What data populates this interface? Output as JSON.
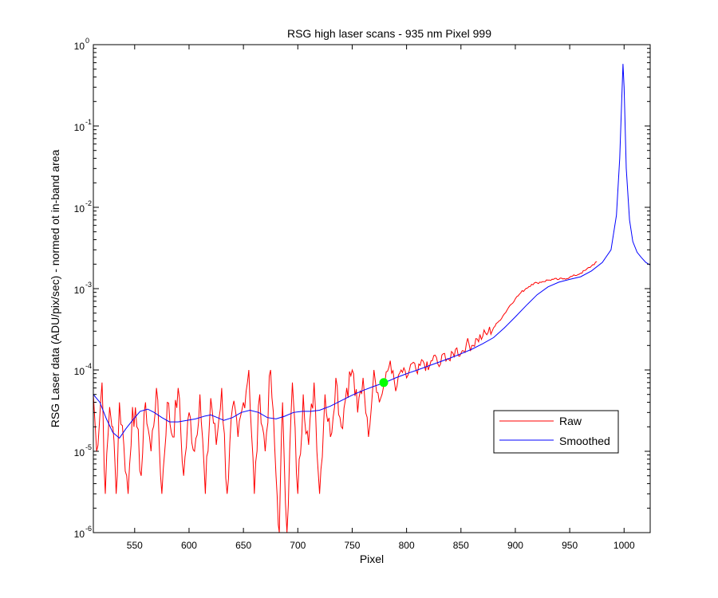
{
  "chart_data": {
    "type": "line",
    "title": "RSG high laser scans  - 935 nm    Pixel 999",
    "xlabel": "Pixel",
    "ylabel": "RSG Laser data (ADU/pix/sec) - normed ot in-band area",
    "xlim": [
      512,
      1024
    ],
    "ylim": [
      1e-06,
      1
    ],
    "yscale": "log",
    "grid": false,
    "legend_position": "lower-right",
    "x_ticks": [
      550,
      600,
      650,
      700,
      750,
      800,
      850,
      900,
      950,
      1000
    ],
    "x_tick_labels": [
      "550",
      "600",
      "650",
      "700",
      "750",
      "800",
      "850",
      "900",
      "950",
      "1000"
    ],
    "y_ticks": [
      {
        "value": 1e-06,
        "base": "10",
        "exp": "-6"
      },
      {
        "value": 1e-05,
        "base": "10",
        "exp": "-5"
      },
      {
        "value": 0.0001,
        "base": "10",
        "exp": "-4"
      },
      {
        "value": 0.001,
        "base": "10",
        "exp": "-3"
      },
      {
        "value": 0.01,
        "base": "10",
        "exp": "-2"
      },
      {
        "value": 0.1,
        "base": "10",
        "exp": "-1"
      },
      {
        "value": 1,
        "base": "10",
        "exp": "0"
      }
    ],
    "series": [
      {
        "name": "Raw",
        "color": "#ff0000",
        "style": "noisy",
        "x": [
          512,
          515,
          520,
          523,
          527,
          530,
          533,
          536,
          540,
          544,
          548,
          552,
          556,
          560,
          565,
          570,
          575,
          580,
          585,
          590,
          595,
          600,
          605,
          610,
          615,
          620,
          625,
          630,
          635,
          640,
          645,
          650,
          655,
          660,
          665,
          670,
          675,
          680,
          683,
          686,
          690,
          695,
          700,
          705,
          710,
          715,
          720,
          725,
          730,
          735,
          740,
          745,
          750,
          755,
          760,
          765,
          770,
          775,
          780,
          785,
          790,
          795,
          800,
          805,
          810,
          815,
          820,
          825,
          830,
          835,
          840,
          845,
          850,
          855,
          860,
          865,
          870,
          875,
          880,
          885,
          890,
          895,
          900,
          905,
          910,
          915,
          920,
          925,
          930,
          935,
          940,
          945,
          950,
          955,
          960,
          965,
          970,
          975
        ],
        "y": [
          5e-05,
          1e-05,
          7e-05,
          3e-06,
          3.5e-05,
          2e-05,
          3e-06,
          4e-05,
          1.2e-05,
          3e-06,
          3.5e-05,
          2e-05,
          5e-06,
          4e-05,
          1e-05,
          6e-05,
          3e-06,
          4e-05,
          1.5e-05,
          6e-05,
          5e-06,
          3e-05,
          1e-05,
          5e-05,
          3e-06,
          4.5e-05,
          1.2e-05,
          6e-05,
          3e-06,
          3.5e-05,
          1.5e-05,
          4e-05,
          0.0001,
          3e-06,
          5e-05,
          1e-05,
          0.0001,
          5e-06,
          1e-06,
          4e-05,
          1e-06,
          7e-05,
          3e-06,
          5e-05,
          1.2e-05,
          7e-05,
          3e-06,
          5e-05,
          1.5e-05,
          8e-05,
          2e-05,
          6e-05,
          0.0001,
          3e-05,
          8e-05,
          1.5e-05,
          0.0001,
          4e-05,
          7e-05,
          0.00013,
          5.5e-05,
          0.0001,
          8e-05,
          0.00012,
          9e-05,
          0.00013,
          0.0001,
          0.00015,
          0.00011,
          0.00016,
          0.00013,
          0.00018,
          0.00016,
          0.00021,
          0.0002,
          0.00024,
          0.00026,
          0.00029,
          0.00033,
          0.0004,
          0.00049,
          0.00062,
          0.00075,
          0.00089,
          0.00101,
          0.00113,
          0.00118,
          0.00122,
          0.00127,
          0.0013,
          0.0013,
          0.00133,
          0.00138,
          0.00145,
          0.00155,
          0.0017,
          0.0019,
          0.00215
        ]
      },
      {
        "name": "Smoothed",
        "color": "#0000ff",
        "style": "smooth",
        "x": [
          512,
          518,
          524,
          530,
          536,
          542,
          548,
          555,
          562,
          568,
          575,
          582,
          590,
          598,
          606,
          614,
          620,
          626,
          632,
          640,
          648,
          656,
          664,
          672,
          680,
          688,
          696,
          704,
          712,
          720,
          730,
          740,
          750,
          760,
          770,
          780,
          790,
          800,
          810,
          820,
          830,
          840,
          850,
          860,
          870,
          880,
          890,
          900,
          910,
          920,
          930,
          940,
          950,
          960,
          970,
          980,
          988,
          993,
          996,
          998,
          999,
          1000,
          1002,
          1005,
          1008,
          1012,
          1016,
          1020,
          1024
        ],
        "y": [
          5e-05,
          4e-05,
          2.5e-05,
          1.7e-05,
          1.45e-05,
          1.9e-05,
          2.4e-05,
          3.1e-05,
          3.3e-05,
          3e-05,
          2.6e-05,
          2.3e-05,
          2.3e-05,
          2.4e-05,
          2.5e-05,
          2.7e-05,
          2.8e-05,
          2.6e-05,
          2.4e-05,
          2.6e-05,
          3e-05,
          3.2e-05,
          3e-05,
          2.6e-05,
          2.5e-05,
          2.7e-05,
          3e-05,
          3.1e-05,
          3.1e-05,
          3.2e-05,
          3.6e-05,
          4.2e-05,
          4.9e-05,
          5.6e-05,
          6.3e-05,
          7e-05,
          8e-05,
          9e-05,
          0.0001,
          0.000112,
          0.000125,
          0.00014,
          0.000158,
          0.00018,
          0.00021,
          0.00025,
          0.00033,
          0.00045,
          0.00062,
          0.00084,
          0.00105,
          0.0012,
          0.0013,
          0.0014,
          0.00165,
          0.0021,
          0.003,
          0.008,
          0.04,
          0.25,
          0.58,
          0.3,
          0.03,
          0.007,
          0.0038,
          0.0028,
          0.0024,
          0.0021,
          0.00195
        ]
      }
    ],
    "marker": {
      "x": 779,
      "y": 7e-05,
      "color": "#00ff00"
    }
  }
}
